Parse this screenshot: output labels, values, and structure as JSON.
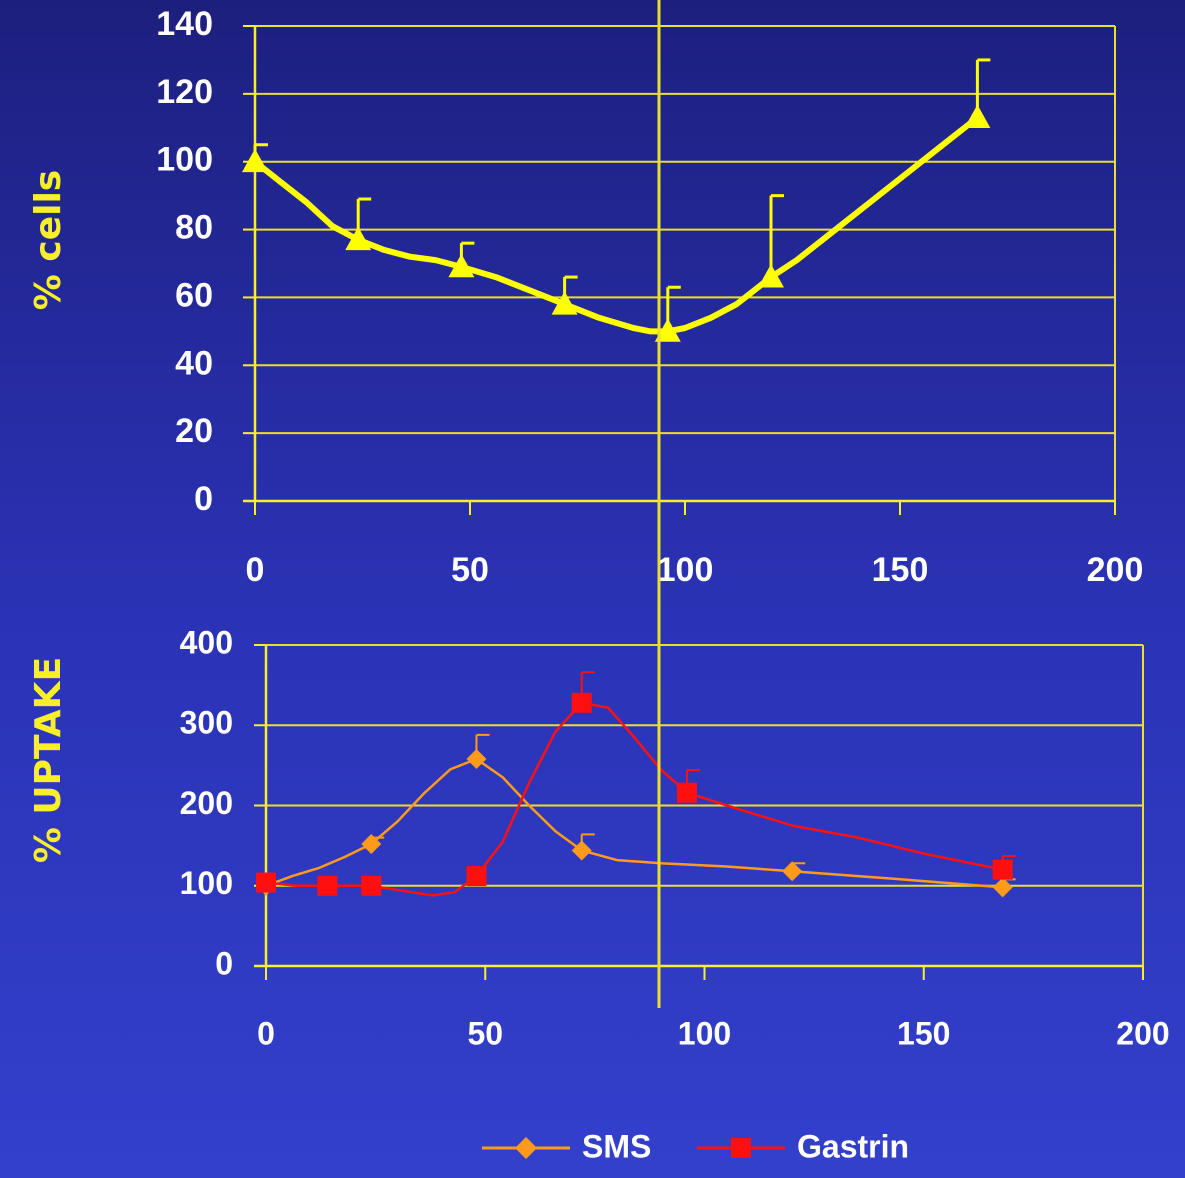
{
  "colors": {
    "axis": "#f7ef2a",
    "grid": "#e8e02a",
    "tick_text": "#ffffff",
    "ylabel_text": "#f7ef2a",
    "cells_series": "#ffff00",
    "sms_series": "#ff9a1a",
    "gastrin_series": "#ff1010",
    "divider": "#e8e02a"
  },
  "chart_data": [
    {
      "type": "line",
      "title": "",
      "xlabel": "",
      "ylabel": "% cells",
      "xlim": [
        0,
        200
      ],
      "ylim": [
        0,
        140
      ],
      "x_ticks": [
        0,
        50,
        100,
        150,
        200
      ],
      "y_ticks": [
        0,
        20,
        40,
        60,
        80,
        100,
        120,
        140
      ],
      "grid": true,
      "series": [
        {
          "name": "",
          "marker": "triangle",
          "x": [
            0,
            24,
            48,
            72,
            96,
            120,
            168
          ],
          "y": [
            100,
            77,
            69,
            58,
            50,
            66,
            113
          ],
          "error_upper": [
            105,
            89,
            76,
            66,
            63,
            90,
            130
          ],
          "smooth_path": [
            [
              0,
              100
            ],
            [
              6,
              94
            ],
            [
              12,
              88
            ],
            [
              18,
              81
            ],
            [
              24,
              77
            ],
            [
              30,
              74
            ],
            [
              36,
              72
            ],
            [
              42,
              71
            ],
            [
              48,
              69
            ],
            [
              56,
              66
            ],
            [
              64,
              62
            ],
            [
              72,
              58
            ],
            [
              80,
              54
            ],
            [
              88,
              51
            ],
            [
              92,
              50
            ],
            [
              96,
              50
            ],
            [
              100,
              51
            ],
            [
              106,
              54
            ],
            [
              112,
              58
            ],
            [
              120,
              66
            ],
            [
              126,
              71
            ],
            [
              134,
              79
            ],
            [
              142,
              87
            ],
            [
              150,
              95
            ],
            [
              158,
              103
            ],
            [
              168,
              113
            ]
          ]
        }
      ]
    },
    {
      "type": "line",
      "title": "",
      "xlabel": "",
      "ylabel": "% UPTAKE",
      "xlim": [
        0,
        200
      ],
      "ylim": [
        0,
        400
      ],
      "x_ticks": [
        0,
        50,
        100,
        150,
        200
      ],
      "y_ticks": [
        0,
        100,
        200,
        300,
        400
      ],
      "grid": true,
      "legend": "bottom-center",
      "series": [
        {
          "name": "SMS",
          "marker": "diamond",
          "x": [
            0,
            24,
            48,
            72,
            120,
            168
          ],
          "y": [
            100,
            152,
            258,
            144,
            118,
            98
          ],
          "error_upper": [
            null,
            160,
            288,
            164,
            128,
            108
          ],
          "smooth_path": [
            [
              0,
              100
            ],
            [
              6,
              112
            ],
            [
              12,
              122
            ],
            [
              18,
              136
            ],
            [
              24,
              152
            ],
            [
              30,
              180
            ],
            [
              36,
              215
            ],
            [
              42,
              245
            ],
            [
              48,
              258
            ],
            [
              54,
              235
            ],
            [
              60,
              200
            ],
            [
              66,
              168
            ],
            [
              72,
              144
            ],
            [
              80,
              132
            ],
            [
              90,
              128
            ],
            [
              105,
              124
            ],
            [
              120,
              118
            ],
            [
              140,
              110
            ],
            [
              168,
              98
            ]
          ]
        },
        {
          "name": "Gastrin",
          "marker": "square",
          "x": [
            0,
            14,
            24,
            48,
            72,
            96,
            168
          ],
          "y": [
            104,
            100,
            100,
            112,
            328,
            216,
            120
          ],
          "error_upper": [
            null,
            null,
            null,
            null,
            366,
            244,
            137
          ],
          "smooth_path": [
            [
              0,
              104
            ],
            [
              7,
              100
            ],
            [
              14,
              100
            ],
            [
              24,
              100
            ],
            [
              32,
              93
            ],
            [
              38,
              88
            ],
            [
              43,
              92
            ],
            [
              48,
              112
            ],
            [
              54,
              155
            ],
            [
              60,
              228
            ],
            [
              66,
              292
            ],
            [
              72,
              328
            ],
            [
              78,
              322
            ],
            [
              84,
              285
            ],
            [
              90,
              245
            ],
            [
              96,
              216
            ],
            [
              108,
              195
            ],
            [
              120,
              175
            ],
            [
              135,
              160
            ],
            [
              150,
              140
            ],
            [
              168,
              120
            ]
          ]
        }
      ]
    }
  ]
}
